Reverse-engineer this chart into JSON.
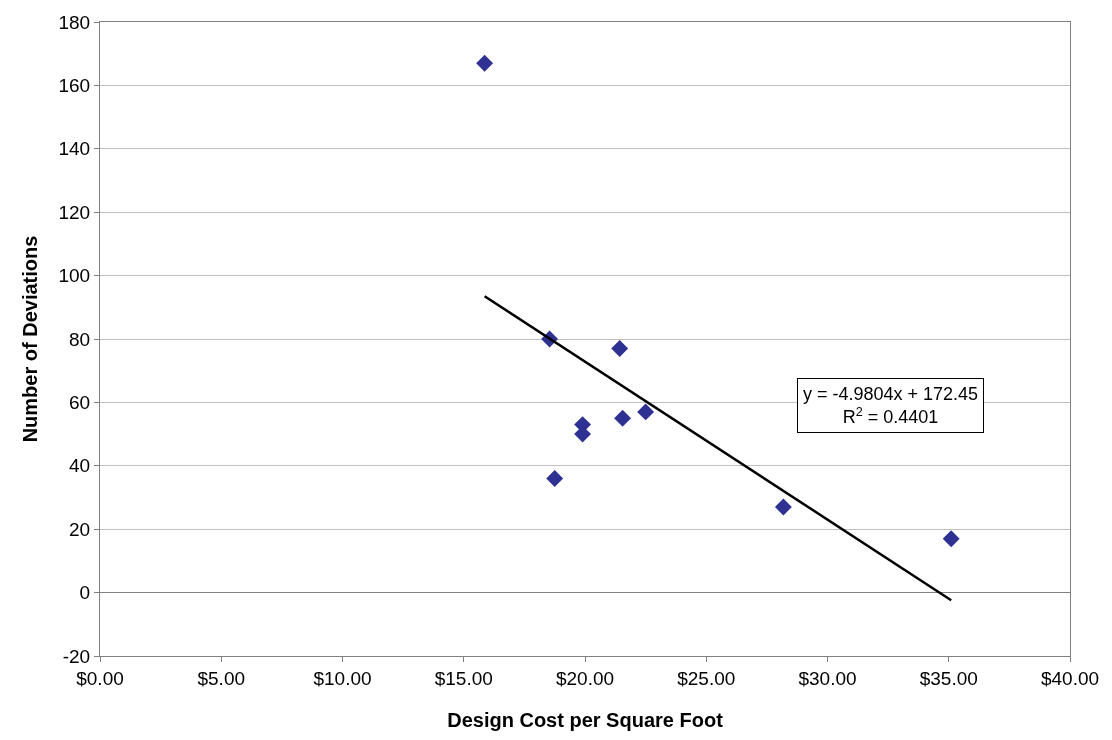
{
  "chart_data": {
    "type": "scatter",
    "xlabel": "Design Cost per Square Foot",
    "ylabel": "Number of Deviations",
    "series": [
      {
        "color": "#2e3192",
        "marker": "diamond",
        "x": [
          15.86,
          18.54,
          18.75,
          19.9,
          19.9,
          21.43,
          21.55,
          22.5,
          28.18,
          35.1
        ],
        "values": [
          167,
          80,
          36,
          53,
          50,
          77,
          55,
          57,
          27,
          17
        ]
      },
      {
        "type": "line",
        "color": "#000000",
        "marker": "none",
        "line_style": "solid",
        "x": [
          15.86,
          35.1
        ],
        "values": [
          93.5,
          -2.4
        ]
      }
    ],
    "xlim": [
      0,
      40
    ],
    "xticks": [
      {
        "value": 0,
        "label": "$0.00"
      },
      {
        "value": 5,
        "label": "$5.00"
      },
      {
        "value": 10,
        "label": "$10.00"
      },
      {
        "value": 15,
        "label": "$15.00"
      },
      {
        "value": 20,
        "label": "$20.00"
      },
      {
        "value": 25,
        "label": "$25.00"
      },
      {
        "value": 30,
        "label": "$30.00"
      },
      {
        "value": 35,
        "label": "$35.00"
      },
      {
        "value": 40,
        "label": "$40.00"
      }
    ],
    "ylim": [
      -20,
      180
    ],
    "yticks": [
      -20,
      0,
      20,
      40,
      60,
      80,
      100,
      120,
      140,
      160,
      180
    ],
    "grid": "y",
    "legend": false,
    "annotations": [
      "y = -4.9804x + 172.45",
      "R$^{2}$ = 0.4401"
    ]
  }
}
